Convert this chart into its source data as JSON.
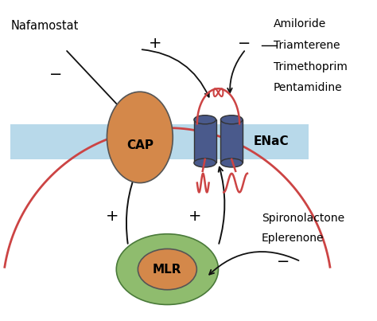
{
  "background_color": "#ffffff",
  "membrane_color": "#b8d9ea",
  "cap_color": "#d4884a",
  "mlr_outer_color": "#8fbc6e",
  "mlr_inner_color": "#d4884a",
  "cylinder_color": "#4a5a8c",
  "wire_color": "#cc4444",
  "arrow_color": "#111111",
  "text_nafamostat": "Nafamostat",
  "text_amiloride": "Amiloride",
  "text_triamterene": "Triamterene",
  "text_trimethoprim": "Trimethoprim",
  "text_pentamidine": "Pentamidine",
  "text_spironolactone": "Spironolactone",
  "text_eplerenone": "Eplerenone",
  "cap_label": "CAP",
  "enac_label": "ENaC",
  "mlr_label": "MLR",
  "figsize": [
    4.74,
    4.03
  ],
  "dpi": 100
}
